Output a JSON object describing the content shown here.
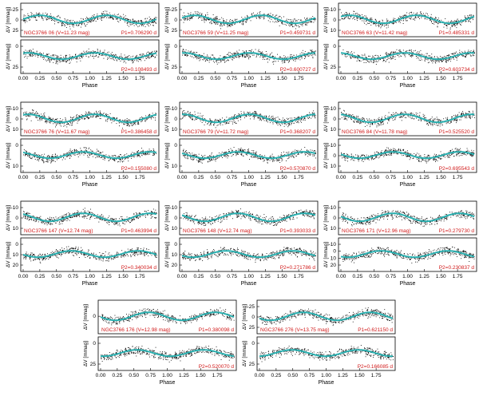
{
  "colors": {
    "curve": "#2ab0b0",
    "points": "#000000",
    "annotation": "#d11a1a",
    "frame": "#000000"
  },
  "chart_data": [
    {
      "type": "scatter",
      "star": "NGC3766 06",
      "vmag": "11.23 mag",
      "p1": "0.706290 d",
      "p2": "0.108493 d",
      "ylabel": "ΔV [mmag]",
      "xlabel": "Phase",
      "top_yticks": [
        "-25",
        "0",
        "25"
      ],
      "bottom_yticks": [
        "0",
        "25"
      ],
      "xticks": [
        "0.00",
        "0.25",
        "0.50",
        "0.75",
        "1.00",
        "1.25",
        "1.50",
        "1.75"
      ],
      "label_top": "NGC3766 06 (V=11.23 mag)",
      "p1_label": "P1=0.706290 d",
      "p2_label": "P2=0.108493 d"
    },
    {
      "type": "scatter",
      "star": "NGC3766 59",
      "vmag": "11.25 mag",
      "p1": "0.459731 d",
      "p2": "0.600727 d",
      "ylabel": "ΔV [mmag]",
      "xlabel": "Phase",
      "top_yticks": [
        "-25",
        "0",
        "25"
      ],
      "bottom_yticks": [
        "0",
        "25"
      ],
      "xticks": [
        "0.00",
        "0.25",
        "0.50",
        "0.75",
        "1.00",
        "1.25",
        "1.50",
        "1.75"
      ],
      "label_top": "NGC3766 59 (V=11.25 mag)",
      "p1_label": "P1=0.459731 d",
      "p2_label": "P2=0.600727 d"
    },
    {
      "type": "scatter",
      "star": "NGC3766 63",
      "vmag": "11.42 mag",
      "p1": "0.485331 d",
      "p2": "0.603734 d",
      "ylabel": "ΔV [mmag]",
      "xlabel": "Phase",
      "top_yticks": [
        "-10",
        "0",
        "10"
      ],
      "bottom_yticks": [
        "0",
        "25"
      ],
      "xticks": [
        "0.00",
        "0.25",
        "0.50",
        "0.75",
        "1.00",
        "1.25",
        "1.50",
        "1.75"
      ],
      "label_top": "NGC3766 63 (V=11.42 mag)",
      "p1_label": "P1=0.485331 d",
      "p2_label": "P2=0.603734 d"
    },
    {
      "type": "scatter",
      "star": "NGC3766 76",
      "vmag": "11.67 mag",
      "p1": "0.386458 d",
      "p2": "0.155080 d",
      "ylabel": "ΔV [mmag]",
      "xlabel": "Phase",
      "top_yticks": [
        "-10",
        "0",
        "10"
      ],
      "bottom_yticks": [
        "0",
        "10"
      ],
      "xticks": [
        "0.00",
        "0.25",
        "0.50",
        "0.75",
        "1.00",
        "1.25",
        "1.50",
        "1.75"
      ],
      "label_top": "NGC3766 76 (V=11.67 mag)",
      "p1_label": "P1=0.386458 d",
      "p2_label": "P2=0.155080 d"
    },
    {
      "type": "scatter",
      "star": "NGC3766 79",
      "vmag": "11.72 mag",
      "p1": "0.368207 d",
      "p2": "0.570870 d",
      "ylabel": "ΔV [mmag]",
      "xlabel": "Phase",
      "top_yticks": [
        "-10",
        "0",
        "10"
      ],
      "bottom_yticks": [
        "0",
        "10"
      ],
      "xticks": [
        "0.00",
        "0.25",
        "0.50",
        "0.75",
        "1.00",
        "1.25",
        "1.50",
        "1.75"
      ],
      "label_top": "NGC3766 79 (V=11.72 mag)",
      "p1_label": "P1=0.368207 d",
      "p2_label": "P2=0.570870 d"
    },
    {
      "type": "scatter",
      "star": "NGC3766 84",
      "vmag": "11.78 mag",
      "p1": "0.525520 d",
      "p2": "0.695543 d",
      "ylabel": "ΔV [mmag]",
      "xlabel": "Phase",
      "top_yticks": [
        "-10",
        "0",
        "10"
      ],
      "bottom_yticks": [
        "-10",
        "0",
        "10"
      ],
      "xticks": [
        "0.00",
        "0.25",
        "0.50",
        "0.75",
        "1.00",
        "1.25",
        "1.50",
        "1.75"
      ],
      "label_top": "NGC3766 84 (V=11.78 mag)",
      "p1_label": "P1=0.525520 d",
      "p2_label": "P2=0.695543 d"
    },
    {
      "type": "scatter",
      "star": "NGC3766 147",
      "vmag": "12.74 mag",
      "p1": "0.463994 d",
      "p2": "0.340034 d",
      "ylabel": "ΔV [mmag]",
      "xlabel": "Phase",
      "top_yticks": [
        "-10",
        "0",
        "10"
      ],
      "bottom_yticks": [
        "0",
        "10",
        "20"
      ],
      "xticks": [
        "0.00",
        "0.25",
        "0.50",
        "0.75",
        "1.00",
        "1.25",
        "1.50",
        "1.75"
      ],
      "label_top": "NGC3766 147 (V=12.74 mag)",
      "p1_label": "P1=0.463994 d",
      "p2_label": "P2=0.340034 d"
    },
    {
      "type": "scatter",
      "star": "NGC3766 148",
      "vmag": "12.74 mag",
      "p1": "0.393033 d",
      "p2": "0.271786 d",
      "ylabel": "ΔV [mmag]",
      "xlabel": "Phase",
      "top_yticks": [
        "-10",
        "0",
        "10"
      ],
      "bottom_yticks": [
        "0",
        "10",
        "20"
      ],
      "xticks": [
        "0.00",
        "0.25",
        "0.50",
        "0.75",
        "1.00",
        "1.25",
        "1.50",
        "1.75"
      ],
      "label_top": "NGC3766 148 (V=12.74 mag)",
      "p1_label": "P1=0.393033 d",
      "p2_label": "P2=0.271786 d"
    },
    {
      "type": "scatter",
      "star": "NGC3766 171",
      "vmag": "12.96 mag",
      "p1": "0.279730 d",
      "p2": "0.230837 d",
      "ylabel": "ΔV [mmag]",
      "xlabel": "Phase",
      "top_yticks": [
        "-10",
        "0",
        "10"
      ],
      "bottom_yticks": [
        "-10",
        "0",
        "10",
        "20"
      ],
      "xticks": [
        "0.00",
        "0.25",
        "0.50",
        "0.75",
        "1.00",
        "1.25",
        "1.50",
        "1.75"
      ],
      "label_top": "NGC3766 171 (V=12.96 mag)",
      "p1_label": "P1=0.279730 d",
      "p2_label": "P2=0.230837 d"
    },
    {
      "type": "scatter",
      "star": "NGC3766 176",
      "vmag": "12.98 mag",
      "p1": "0.380098 d",
      "p2": "0.520070 d",
      "ylabel": "ΔV [mmag]",
      "xlabel": "Phase",
      "top_yticks": [
        "0"
      ],
      "bottom_yticks": [
        "0",
        "25"
      ],
      "xticks": [
        "0.00",
        "0.25",
        "0.50",
        "0.75",
        "1.00",
        "1.25",
        "1.50",
        "1.75"
      ],
      "label_top": "NGC3766 176 (V=12.98 mag)",
      "p1_label": "P1=0.380098 d",
      "p2_label": "P2=0.520070 d"
    },
    {
      "type": "scatter",
      "star": "NGC3766 276",
      "vmag": "13.75 mag",
      "p1": "0.621150 d",
      "p2": "0.166085 d",
      "ylabel": "ΔV [mmag]",
      "xlabel": "Phase",
      "top_yticks": [
        "-25",
        "0",
        "25"
      ],
      "bottom_yticks": [
        "0",
        "25"
      ],
      "xticks": [
        "0.00",
        "0.25",
        "0.50",
        "0.75",
        "1.00",
        "1.25",
        "1.50",
        "1.75"
      ],
      "label_top": "NGC3766 276 (V=13.75 mag)",
      "p1_label": "P1=0.621150 d",
      "p2_label": "P2=0.166085 d"
    }
  ]
}
